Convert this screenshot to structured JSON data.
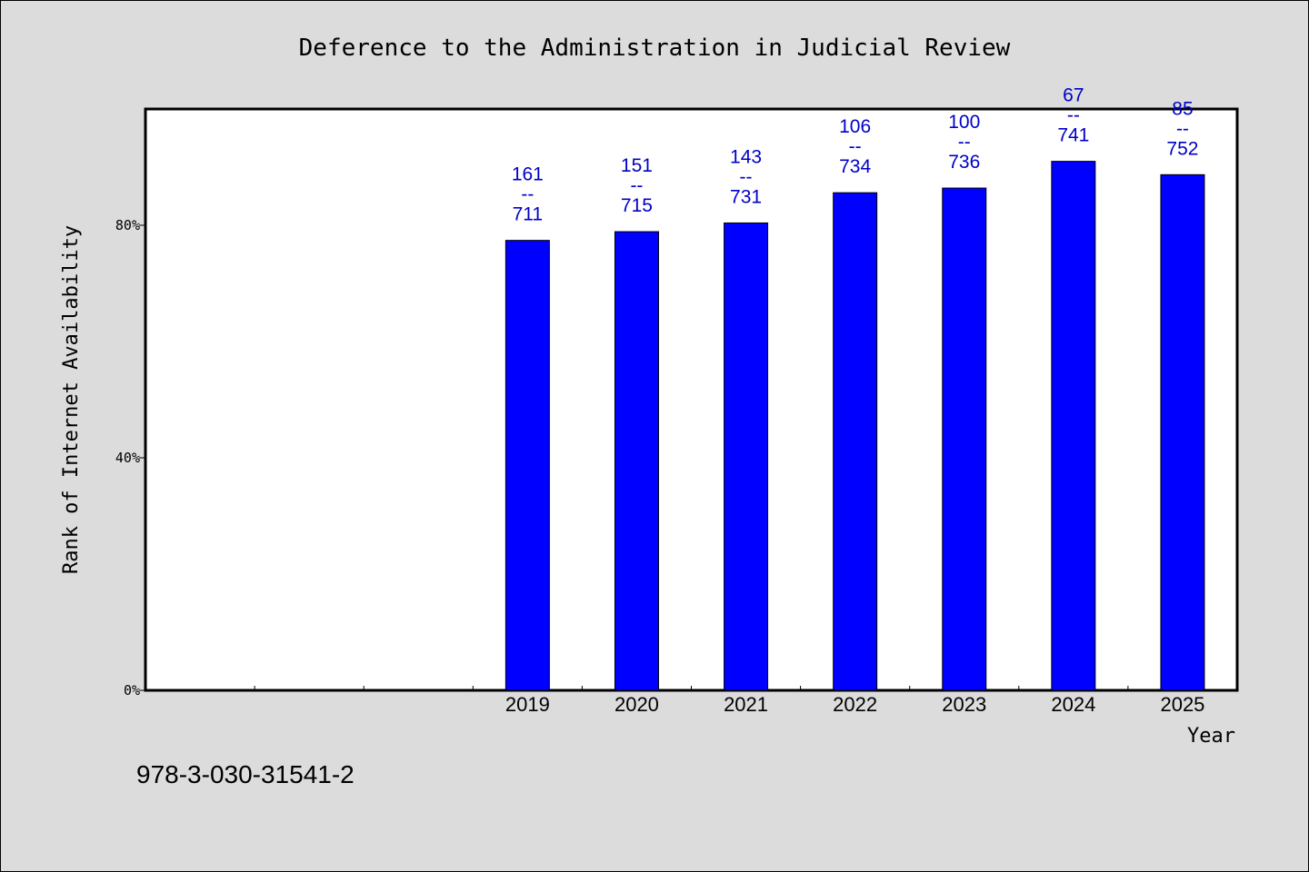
{
  "chart_data": {
    "type": "bar",
    "title": "Deference to the Administration in Judicial Review",
    "xlabel": "Year",
    "ylabel": "Rank of Internet Availability",
    "categories": [
      "",
      "",
      "",
      "2019",
      "2020",
      "2021",
      "2022",
      "2023",
      "2024",
      "2025"
    ],
    "values": [
      null,
      null,
      null,
      77.4,
      78.9,
      80.4,
      85.6,
      86.4,
      91.0,
      88.7
    ],
    "labels_top": [
      "",
      "",
      "",
      "161",
      "151",
      "143",
      "106",
      "100",
      "67",
      "85"
    ],
    "labels_sep": "--",
    "labels_bottom": [
      "",
      "",
      "",
      "711",
      "715",
      "731",
      "734",
      "736",
      "741",
      "752"
    ],
    "ylim": [
      0,
      100
    ],
    "yticks": [
      0,
      40,
      80
    ],
    "ytick_labels": [
      "0%",
      "40%",
      "80%"
    ],
    "bar_color": "#0000ff",
    "label_color": "#0000c8",
    "grid": false
  },
  "footer": {
    "isbn": "978-3-030-31541-2"
  }
}
